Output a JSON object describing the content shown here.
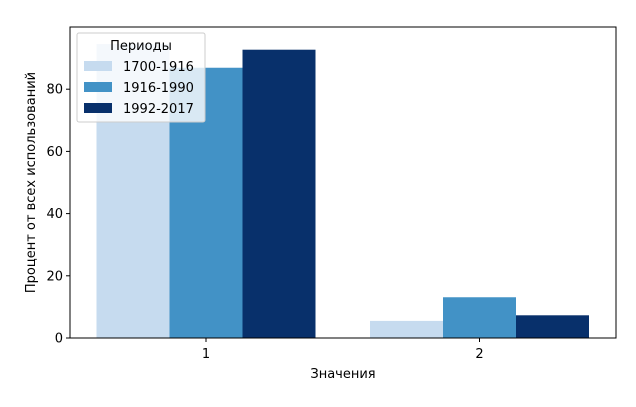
{
  "chart_data": {
    "type": "bar",
    "title": "",
    "xlabel": "Значения",
    "ylabel": "Процент от всех использований",
    "categories": [
      "1",
      "2"
    ],
    "ylim": [
      0,
      100
    ],
    "yticks": [
      0,
      20,
      40,
      60,
      80
    ],
    "grid": false,
    "legend": {
      "title": "Периоды",
      "placement": "top-left"
    },
    "series": [
      {
        "name": "1700-1916",
        "values": [
          94.5,
          5.5
        ],
        "color": "#c6dbef"
      },
      {
        "name": "1916-1990",
        "values": [
          86.9,
          13.1
        ],
        "color": "#4292c6"
      },
      {
        "name": "1992-2017",
        "values": [
          92.7,
          7.3
        ],
        "color": "#08306b"
      }
    ]
  }
}
